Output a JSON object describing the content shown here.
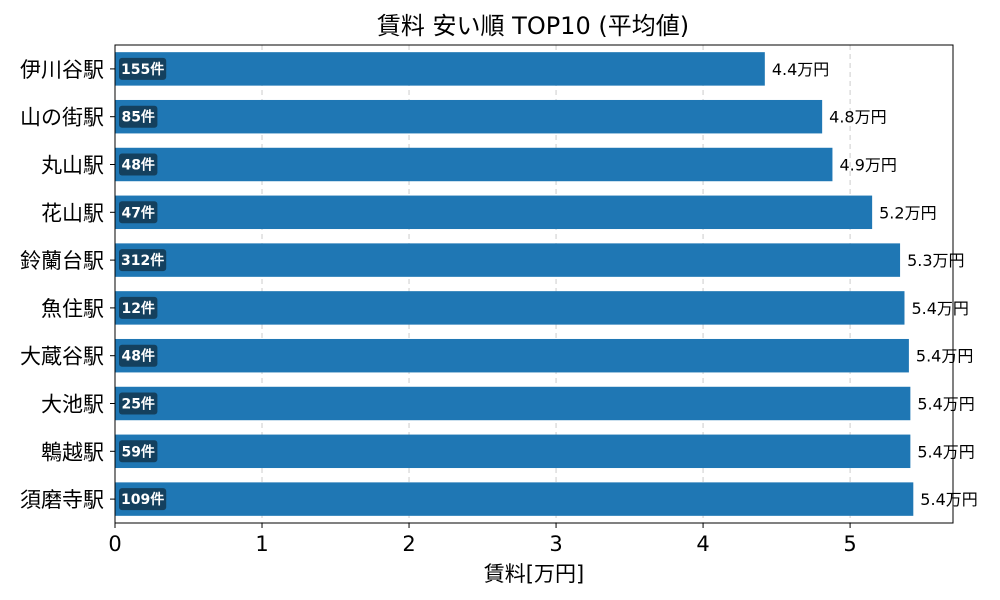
{
  "chart_data": {
    "type": "bar",
    "orientation": "horizontal",
    "title": "賃料 安い順 TOP10 (平均値)",
    "xlabel": "賃料[万円]",
    "ylabel": "",
    "xlim": [
      0,
      5.7
    ],
    "xticks": [
      0,
      1,
      2,
      3,
      4,
      5
    ],
    "grid": "x-dashed",
    "categories": [
      "伊川谷駅",
      "山の街駅",
      "丸山駅",
      "花山駅",
      "鈴蘭台駅",
      "魚住駅",
      "大蔵谷駅",
      "大池駅",
      "鵯越駅",
      "須磨寺駅"
    ],
    "values": [
      4.42,
      4.81,
      4.88,
      5.15,
      5.34,
      5.37,
      5.4,
      5.41,
      5.41,
      5.43
    ],
    "value_labels": [
      "4.4万円",
      "4.8万円",
      "4.9万円",
      "5.2万円",
      "5.3万円",
      "5.4万円",
      "5.4万円",
      "5.4万円",
      "5.4万円",
      "5.4万円"
    ],
    "counts": [
      "155件",
      "85件",
      "48件",
      "47件",
      "312件",
      "12件",
      "48件",
      "25件",
      "59件",
      "109件"
    ],
    "colors": {
      "bar": "#1f77b4",
      "count_badge": "#14405e",
      "grid": "#cccccc"
    }
  }
}
